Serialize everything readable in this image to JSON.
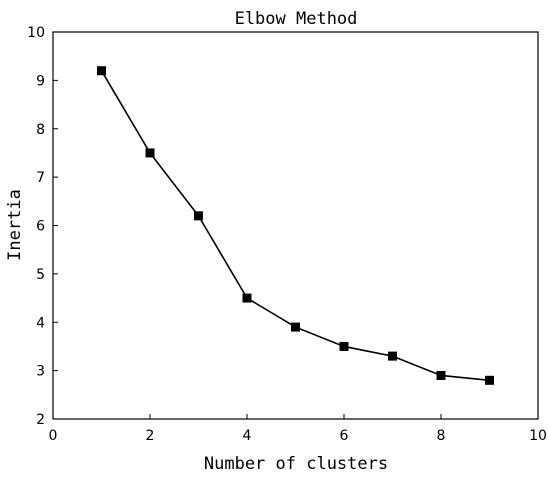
{
  "chart_data": {
    "type": "line",
    "title": "Elbow Method",
    "xlabel": "Number of clusters",
    "ylabel": "Inertia",
    "xlim": [
      0,
      10
    ],
    "ylim": [
      2,
      10
    ],
    "xticks": [
      0,
      2,
      4,
      6,
      8,
      10
    ],
    "yticks": [
      2,
      3,
      4,
      5,
      6,
      7,
      8,
      9,
      10
    ],
    "grid": false,
    "marker": "square",
    "series": [
      {
        "x": [
          1,
          2,
          3,
          4,
          5,
          6,
          7,
          8,
          9
        ],
        "y": [
          9.2,
          7.5,
          6.2,
          4.5,
          3.9,
          3.5,
          3.3,
          2.9,
          2.8
        ]
      }
    ],
    "colors": {
      "line": "#000000",
      "marker": "#000000",
      "axis": "#000000"
    }
  }
}
